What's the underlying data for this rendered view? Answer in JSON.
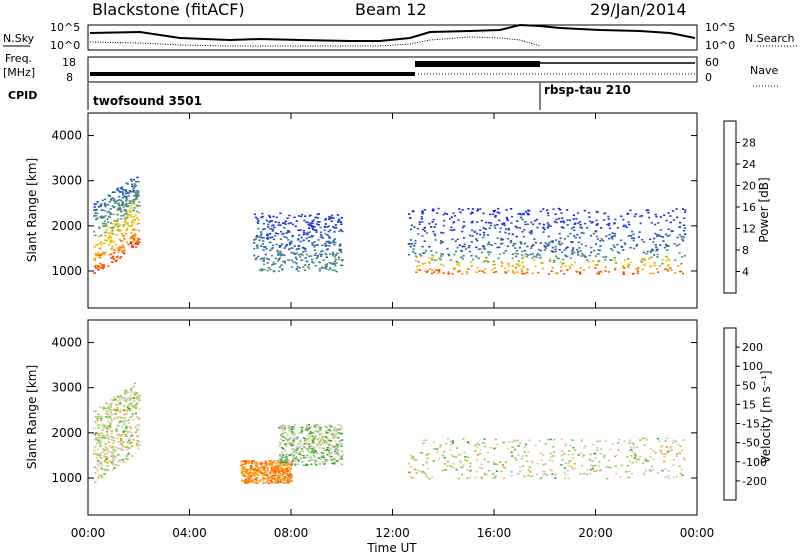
{
  "header": {
    "radar": "Blackstone (fitACF)",
    "beam": "Beam 12",
    "date": "29/Jan/2014"
  },
  "left_labels": {
    "nsky": "N.Sky",
    "freq_line1": "Freq.",
    "freq_line2": "[MHz]",
    "cpid": "CPID"
  },
  "right_labels": {
    "nsearch": "N.Search",
    "nave": "Nave"
  },
  "sky_axis": {
    "top": "10^5",
    "bottom": "10^0"
  },
  "search_axis": {
    "top": "10^5",
    "bottom": "10^0"
  },
  "freq_axis": {
    "top": "18",
    "bottom": "8"
  },
  "nave_axis": {
    "top": "60",
    "bottom": "0"
  },
  "cpid": {
    "first": "twofsound 3501",
    "second": "rbsp-tau 210"
  },
  "x_axis": {
    "ticks": [
      "00:00",
      "04:00",
      "08:00",
      "12:00",
      "16:00",
      "20:00",
      "00:00"
    ],
    "title": "Time UT"
  },
  "power_panel": {
    "ylabel": "Slant Range [km]",
    "yticks": [
      "1000",
      "2000",
      "3000",
      "4000"
    ],
    "colorbar_title": "Power [dB]",
    "colorbar_labels": [
      "4",
      "8",
      "12",
      "16",
      "20",
      "24",
      "28"
    ]
  },
  "velocity_panel": {
    "ylabel": "Slant Range [km]",
    "yticks": [
      "1000",
      "2000",
      "3000",
      "4000"
    ],
    "colorbar_title": "Velocity [m s⁻¹]",
    "colorbar_labels": [
      "-200",
      "-100",
      "-50",
      "-15",
      "15",
      "50",
      "100",
      "200"
    ]
  },
  "colors": {
    "power_scale": [
      "#1a1aff",
      "#2050c0",
      "#3a7a8a",
      "#5a9a70",
      "#e8c800",
      "#ffa000",
      "#ff5000",
      "#ff0000"
    ],
    "velocity_scale": [
      "#ff0000",
      "#ff5a00",
      "#ff9a00",
      "#e8c890",
      "#c8c8c0",
      "#90d050",
      "#40a040",
      "#2060c0",
      "#3030b0"
    ]
  },
  "chart_data": [
    {
      "type": "heatmap",
      "title": "Power",
      "xlabel": "Time UT",
      "ylabel": "Slant Range [km]",
      "xlim": [
        0,
        24
      ],
      "ylim": [
        180,
        4500
      ],
      "zlim": [
        0,
        30
      ],
      "scatter_regions": [
        {
          "t0": 0.2,
          "t1": 2.0,
          "r0": 900,
          "r1": 2500,
          "slope": 700,
          "z": 26
        },
        {
          "t0": 6.5,
          "t1": 10.0,
          "r0": 1000,
          "r1": 2300,
          "slope": 0,
          "z": 12
        },
        {
          "t0": 12.6,
          "t1": 23.5,
          "r0": 950,
          "r1": 1600,
          "slope": 0,
          "z": 24
        },
        {
          "t0": 12.6,
          "t1": 23.5,
          "r0": 1600,
          "r1": 2400,
          "slope": 0,
          "z": 8
        }
      ]
    },
    {
      "type": "heatmap",
      "title": "Velocity",
      "xlabel": "Time UT",
      "ylabel": "Slant Range [km]",
      "xlim": [
        0,
        24
      ],
      "ylim": [
        180,
        4500
      ],
      "zlim": [
        -250,
        250
      ],
      "scatter_regions": [
        {
          "t0": 0.2,
          "t1": 2.0,
          "r0": 900,
          "r1": 2500,
          "slope": 700,
          "z": 0
        },
        {
          "t0": 6.0,
          "t1": 8.0,
          "r0": 900,
          "r1": 1400,
          "slope": 0,
          "z": -80
        },
        {
          "t0": 7.5,
          "t1": 10.0,
          "r0": 1300,
          "r1": 2200,
          "slope": 0,
          "z": 30
        },
        {
          "t0": 12.6,
          "t1": 23.5,
          "r0": 1000,
          "r1": 1900,
          "slope": 0,
          "z": 0
        }
      ]
    }
  ]
}
